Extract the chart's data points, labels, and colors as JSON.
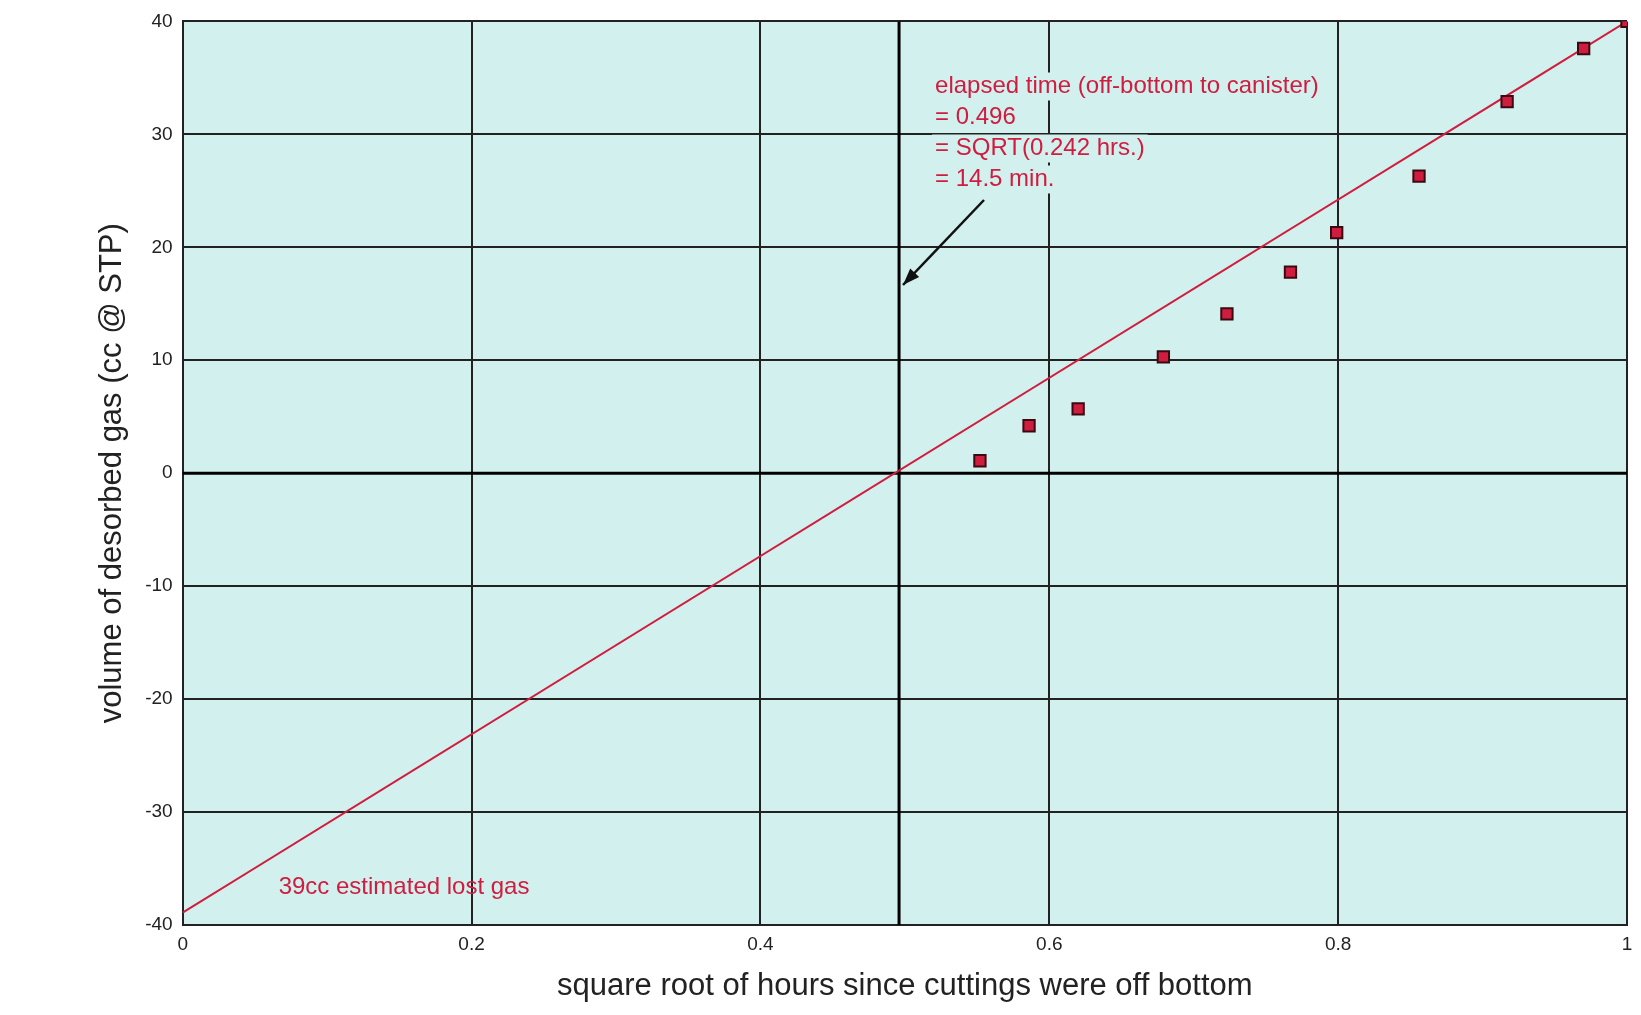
{
  "chart_data": {
    "type": "scatter",
    "xlabel": "square root of hours since cuttings were off bottom",
    "ylabel": "volume of desorbed gas (cc @ STP)",
    "xlim": [
      0,
      1
    ],
    "xticks": [
      0,
      0.2,
      0.4,
      0.6,
      0.8,
      1
    ],
    "ylim": [
      -40,
      40
    ],
    "yticks": [
      -40,
      -30,
      -20,
      -10,
      0,
      10,
      20,
      30,
      40
    ],
    "grid": true,
    "legend": false,
    "marker": "square",
    "series": [
      {
        "color": "#d01d3f",
        "x": [
          0.552,
          0.586,
          0.62,
          0.679,
          0.723,
          0.767,
          0.799,
          0.856,
          0.917,
          0.97,
          1.0
        ],
        "values": [
          1.1,
          4.2,
          5.7,
          10.3,
          14.1,
          17.8,
          21.3,
          26.3,
          32.9,
          37.6,
          40
        ]
      },
      {
        "type": "line",
        "color": "#d01d3f",
        "x": [
          0,
          1
        ],
        "values": [
          -38.9,
          40
        ],
        "marker": "none",
        "line_style": "solid"
      }
    ],
    "ref_lines": [
      {
        "axis": "y",
        "value": 0,
        "color": "#000000"
      },
      {
        "axis": "x",
        "value": 0.496,
        "color": "#000000",
        "label": "elapsed time (off-bottom to canister)\n= 0.496\n= SQRT(0.242 hrs.)\n= 14.5 min."
      }
    ],
    "annotations": [
      "39cc estimated lost gas"
    ]
  }
}
